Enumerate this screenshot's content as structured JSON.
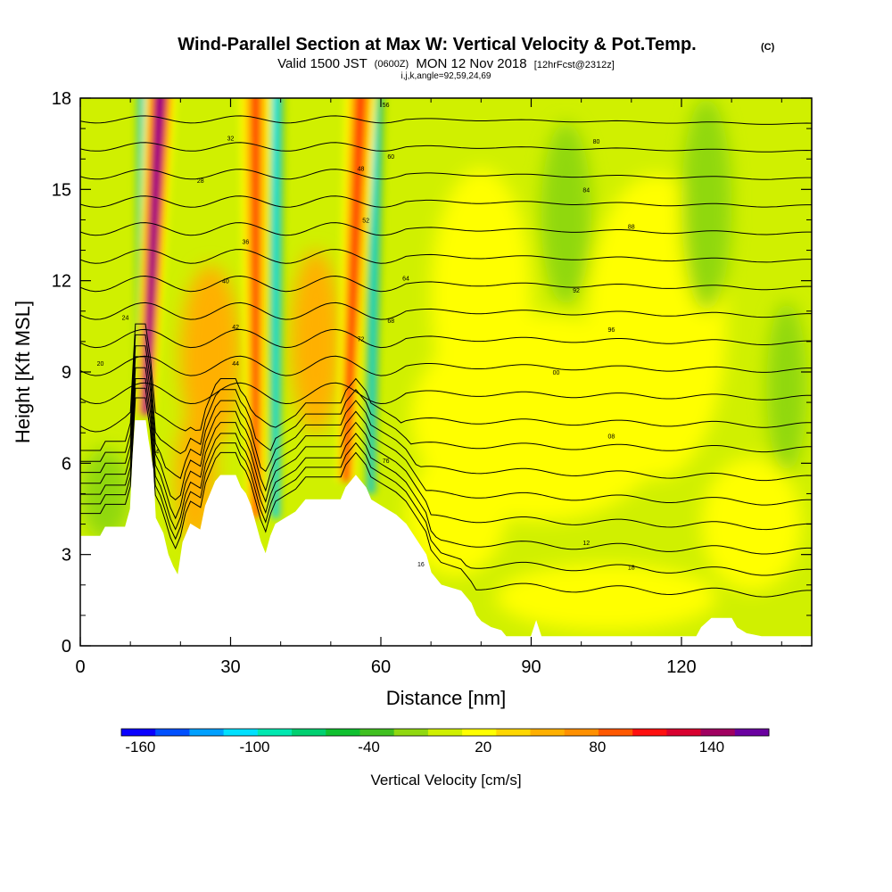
{
  "title": {
    "main": "Wind-Parallel Section at Max W: Vertical Velocity & Pot.Temp.",
    "main_mark": "(C)",
    "valid_pre": "Valid 1500 JST",
    "valid_utc": "(0600Z)",
    "valid_date": "MON 12 Nov 2018",
    "valid_fcst": "[12hrFcst@2312z]",
    "indices": "i,j,k,angle=92,59,24,69"
  },
  "chart_data": {
    "type": "heatmap",
    "xlabel": "Distance [nm]",
    "ylabel": "Height [Kft MSL]",
    "xlim": [
      0,
      146
    ],
    "ylim": [
      0,
      18
    ],
    "x_ticks": [
      0,
      30,
      60,
      90,
      120
    ],
    "y_ticks": [
      0,
      3,
      6,
      9,
      12,
      15,
      18
    ],
    "colorbar": {
      "title": "Vertical Velocity [cm/s]",
      "min": -170,
      "max": 170,
      "labels": [
        -160,
        -100,
        -40,
        20,
        80,
        140
      ],
      "colors": [
        "#0a00ff",
        "#0050ff",
        "#00a0ff",
        "#00e0ff",
        "#00e8b0",
        "#00d070",
        "#10c030",
        "#40c020",
        "#90d810",
        "#d0f000",
        "#ffff00",
        "#ffd700",
        "#ffb000",
        "#ff9000",
        "#ff5800",
        "#ff1010",
        "#d80030",
        "#a00060",
        "#6a00a0"
      ]
    },
    "updraft_cores": [
      {
        "x_nm": 16,
        "x_base_nm": 13,
        "w_cms": 170
      },
      {
        "x_nm": 35,
        "x_base_nm": 35,
        "w_cms": 100
      },
      {
        "x_nm": 56,
        "x_base_nm": 53,
        "w_cms": 110
      }
    ],
    "downdraft_cores": [
      {
        "x_nm": 13,
        "x_base_nm": 12,
        "w_cms": -130
      },
      {
        "x_nm": 39,
        "x_base_nm": 39,
        "w_cms": -110
      },
      {
        "x_nm": 59,
        "x_base_nm": 58,
        "w_cms": -100
      }
    ],
    "terrain_kft": [
      [
        0,
        3.6
      ],
      [
        4,
        3.6
      ],
      [
        5,
        3.9
      ],
      [
        9,
        3.9
      ],
      [
        10,
        4.5
      ],
      [
        10.5,
        6.2
      ],
      [
        11,
        7.4
      ],
      [
        13,
        7.4
      ],
      [
        13.5,
        6.8
      ],
      [
        14.5,
        5.8
      ],
      [
        15,
        4.2
      ],
      [
        16.5,
        3.7
      ],
      [
        17.5,
        3.0
      ],
      [
        18.5,
        2.6
      ],
      [
        19.5,
        2.3
      ],
      [
        20.5,
        3.4
      ],
      [
        22,
        4.0
      ],
      [
        24,
        3.8
      ],
      [
        25,
        4.6
      ],
      [
        26,
        5.0
      ],
      [
        27,
        5.4
      ],
      [
        28,
        5.6
      ],
      [
        31,
        5.6
      ],
      [
        32,
        5.2
      ],
      [
        33,
        5.0
      ],
      [
        34,
        4.6
      ],
      [
        35,
        4.0
      ],
      [
        36,
        3.4
      ],
      [
        37,
        3.0
      ],
      [
        38,
        3.6
      ],
      [
        39,
        4.0
      ],
      [
        41,
        4.2
      ],
      [
        43,
        4.4
      ],
      [
        45,
        4.8
      ],
      [
        52,
        4.8
      ],
      [
        53,
        5.2
      ],
      [
        55,
        5.6
      ],
      [
        57,
        5.2
      ],
      [
        58,
        4.8
      ],
      [
        61,
        4.5
      ],
      [
        63,
        4.3
      ],
      [
        65,
        4.0
      ],
      [
        67,
        3.5
      ],
      [
        69,
        3.0
      ],
      [
        70,
        2.4
      ],
      [
        72,
        2.0
      ],
      [
        74,
        1.9
      ],
      [
        76,
        1.8
      ],
      [
        77,
        1.6
      ],
      [
        78,
        1.4
      ],
      [
        79,
        1.0
      ],
      [
        80,
        0.8
      ],
      [
        82,
        0.6
      ],
      [
        84,
        0.5
      ],
      [
        85,
        0.3
      ],
      [
        90,
        0.3
      ],
      [
        91,
        0.8
      ],
      [
        92,
        0.3
      ],
      [
        123,
        0.3
      ],
      [
        124,
        0.6
      ],
      [
        126,
        0.9
      ],
      [
        130,
        0.9
      ],
      [
        131,
        0.6
      ],
      [
        133,
        0.4
      ],
      [
        136,
        0.3
      ],
      [
        146,
        0.3
      ]
    ],
    "isentrope_labels": [
      {
        "x": 4,
        "y": 9.3,
        "text": "20"
      },
      {
        "x": 9,
        "y": 10.8,
        "text": "24"
      },
      {
        "x": 15,
        "y": 6.4,
        "text": "04"
      },
      {
        "x": 24,
        "y": 15.3,
        "text": "28"
      },
      {
        "x": 30,
        "y": 16.7,
        "text": "32"
      },
      {
        "x": 33,
        "y": 13.3,
        "text": "36"
      },
      {
        "x": 29,
        "y": 12.0,
        "text": "40"
      },
      {
        "x": 31,
        "y": 10.5,
        "text": "42"
      },
      {
        "x": 31,
        "y": 9.3,
        "text": "44"
      },
      {
        "x": 56,
        "y": 15.7,
        "text": "48"
      },
      {
        "x": 57,
        "y": 14.0,
        "text": "52"
      },
      {
        "x": 61,
        "y": 17.8,
        "text": "56"
      },
      {
        "x": 62,
        "y": 16.1,
        "text": "60"
      },
      {
        "x": 65,
        "y": 12.1,
        "text": "64"
      },
      {
        "x": 62,
        "y": 10.7,
        "text": "68"
      },
      {
        "x": 56,
        "y": 10.1,
        "text": "72"
      },
      {
        "x": 61,
        "y": 6.1,
        "text": "76"
      },
      {
        "x": 103,
        "y": 16.6,
        "text": "80"
      },
      {
        "x": 101,
        "y": 15.0,
        "text": "84"
      },
      {
        "x": 110,
        "y": 13.8,
        "text": "88"
      },
      {
        "x": 99,
        "y": 11.7,
        "text": "92"
      },
      {
        "x": 106,
        "y": 10.4,
        "text": "96"
      },
      {
        "x": 95,
        "y": 9.0,
        "text": "00"
      },
      {
        "x": 106,
        "y": 6.9,
        "text": "08"
      },
      {
        "x": 101,
        "y": 3.4,
        "text": "12"
      },
      {
        "x": 68,
        "y": 2.7,
        "text": "16"
      },
      {
        "x": 110,
        "y": 2.6,
        "text": "18"
      }
    ]
  }
}
